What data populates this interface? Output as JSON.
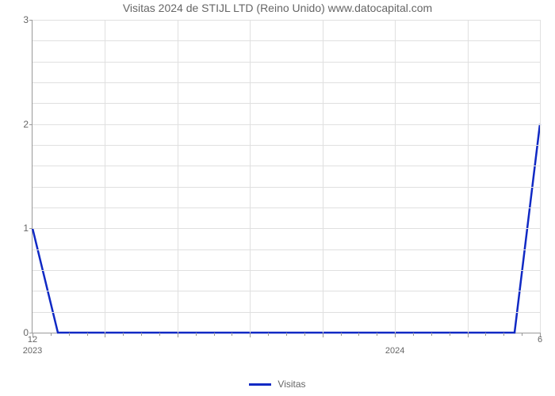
{
  "chart": {
    "type": "line",
    "title": "Visitas 2024 de STIJL LTD (Reino Unido) www.datocapital.com",
    "title_color": "#666666",
    "title_fontsize": 14,
    "background_color": "#ffffff",
    "grid_color": "#e0e0e0",
    "axis_color": "#999999",
    "tick_label_color": "#666666",
    "tick_fontsize": 12,
    "line_color": "#1029c4",
    "line_width": 2.5,
    "ylim": [
      0,
      3
    ],
    "yticks": [
      0,
      1,
      2,
      3
    ],
    "y_minor_steps": 5,
    "x_major_count": 8,
    "x_minor_per_major": 4,
    "x_tick_labels_top": [
      "12",
      "",
      "",
      "",
      "",
      "",
      "",
      "6"
    ],
    "x_tick_labels_year": [
      "2023",
      "",
      "",
      "",
      "",
      "2024",
      "",
      ""
    ],
    "data_points": [
      {
        "x": 0.0,
        "y": 1.0
      },
      {
        "x": 0.05,
        "y": 0.0
      },
      {
        "x": 0.95,
        "y": 0.0
      },
      {
        "x": 1.0,
        "y": 2.0
      }
    ],
    "legend": {
      "label": "Visitas",
      "color": "#1029c4"
    }
  }
}
